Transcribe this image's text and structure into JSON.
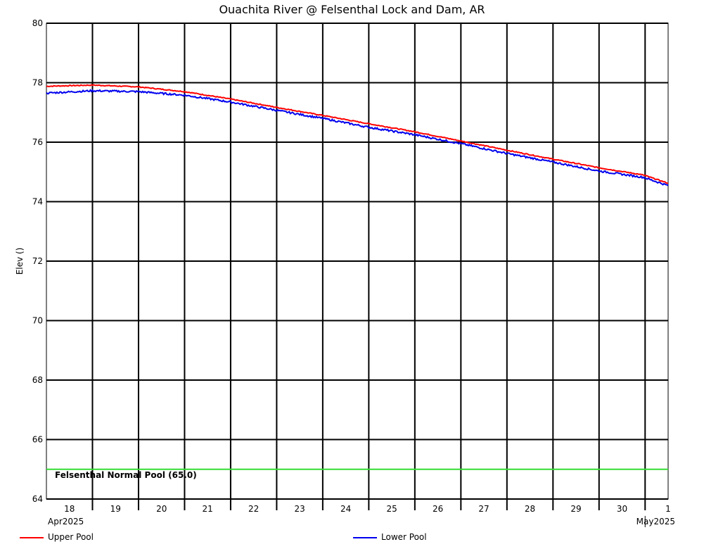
{
  "chart_data": {
    "type": "line",
    "title": "Ouachita River @ Felsenthal Lock and Dam, AR",
    "ylabel": "Elev ()",
    "xlabel": "",
    "ylim": [
      64,
      80
    ],
    "yticks": [
      64,
      66,
      68,
      70,
      72,
      74,
      76,
      78,
      80
    ],
    "xlim": [
      "2025-04-18T00:00",
      "2025-05-01T12:00"
    ],
    "x_tick_labels": [
      "18",
      "19",
      "20",
      "21",
      "22",
      "23",
      "24",
      "25",
      "26",
      "27",
      "28",
      "29",
      "30",
      "1"
    ],
    "x_tick_dates": [
      "2025-04-18T12:00",
      "2025-04-19T12:00",
      "2025-04-20T12:00",
      "2025-04-21T12:00",
      "2025-04-22T12:00",
      "2025-04-23T12:00",
      "2025-04-24T12:00",
      "2025-04-25T12:00",
      "2025-04-26T12:00",
      "2025-04-27T12:00",
      "2025-04-28T12:00",
      "2025-04-29T12:00",
      "2025-04-30T12:00",
      "2025-05-01T12:00"
    ],
    "month_labels": [
      {
        "text": "Apr2025",
        "date": "2025-04-18T00:00"
      },
      {
        "text": "May2025",
        "date": "2025-05-01T00:00"
      }
    ],
    "grid": true,
    "reference_lines": [
      {
        "label": "Felsenthal Normal Pool (65.0)",
        "y": 65.0,
        "color": "#33dd33"
      }
    ],
    "series": [
      {
        "name": "Upper Pool",
        "color": "#ff0000",
        "points": [
          [
            "2025-04-18T00:00",
            77.88
          ],
          [
            "2025-04-19T00:00",
            77.92
          ],
          [
            "2025-04-20T00:00",
            77.86
          ],
          [
            "2025-04-21T00:00",
            77.7
          ],
          [
            "2025-04-22T00:00",
            77.45
          ],
          [
            "2025-04-23T00:00",
            77.17
          ],
          [
            "2025-04-24T00:00",
            76.9
          ],
          [
            "2025-04-25T00:00",
            76.62
          ],
          [
            "2025-04-26T00:00",
            76.35
          ],
          [
            "2025-04-27T00:00",
            76.04
          ],
          [
            "2025-04-28T00:00",
            75.73
          ],
          [
            "2025-04-29T00:00",
            75.43
          ],
          [
            "2025-04-30T00:00",
            75.14
          ],
          [
            "2025-04-30T23:00",
            74.9
          ],
          [
            "2025-05-01T12:00",
            74.62
          ]
        ]
      },
      {
        "name": "Lower Pool",
        "color": "#0000ee",
        "points": [
          [
            "2025-04-18T00:00",
            77.65
          ],
          [
            "2025-04-19T00:00",
            77.73
          ],
          [
            "2025-04-20T00:00",
            77.7
          ],
          [
            "2025-04-21T00:00",
            77.58
          ],
          [
            "2025-04-22T00:00",
            77.35
          ],
          [
            "2025-04-23T00:00",
            77.07
          ],
          [
            "2025-04-24T00:00",
            76.8
          ],
          [
            "2025-04-25T00:00",
            76.5
          ],
          [
            "2025-04-26T00:00",
            76.25
          ],
          [
            "2025-04-27T00:00",
            75.95
          ],
          [
            "2025-04-28T00:00",
            75.62
          ],
          [
            "2025-04-29T00:00",
            75.33
          ],
          [
            "2025-04-30T00:00",
            75.03
          ],
          [
            "2025-04-30T23:00",
            74.82
          ],
          [
            "2025-05-01T12:00",
            74.54
          ]
        ]
      }
    ]
  }
}
